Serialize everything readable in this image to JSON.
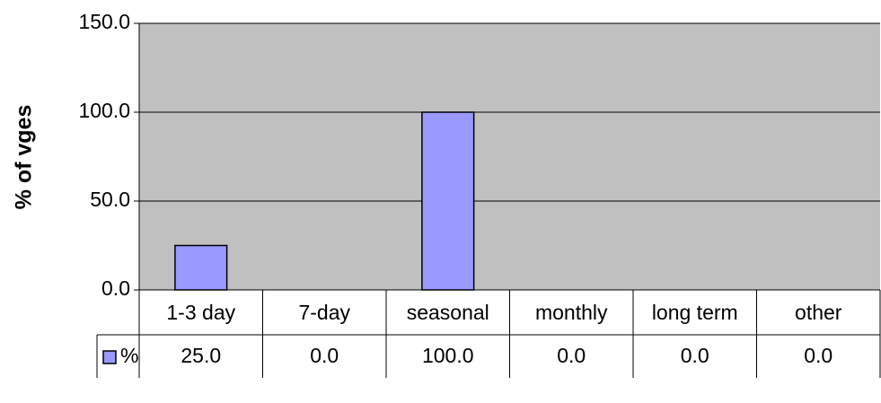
{
  "chart_data": {
    "type": "bar",
    "y_label": "% of vges",
    "categories": [
      "1-3 day",
      "7-day",
      "seasonal",
      "monthly",
      "long term",
      "other"
    ],
    "series": [
      {
        "name": "%",
        "color": "#9999ff",
        "values": [
          25,
          0,
          100,
          0,
          0,
          0
        ],
        "value_labels": [
          "25.0",
          "0.0",
          "100.0",
          "0.0",
          "0.0",
          "0.0"
        ]
      }
    ],
    "ylim": [
      0,
      150
    ],
    "yticks": [
      {
        "value": 0,
        "label": "0.0"
      },
      {
        "value": 50,
        "label": "50.0"
      },
      {
        "value": 100,
        "label": "100.0"
      },
      {
        "value": 150,
        "label": "150.0"
      }
    ],
    "grid": true,
    "data_table": true
  }
}
